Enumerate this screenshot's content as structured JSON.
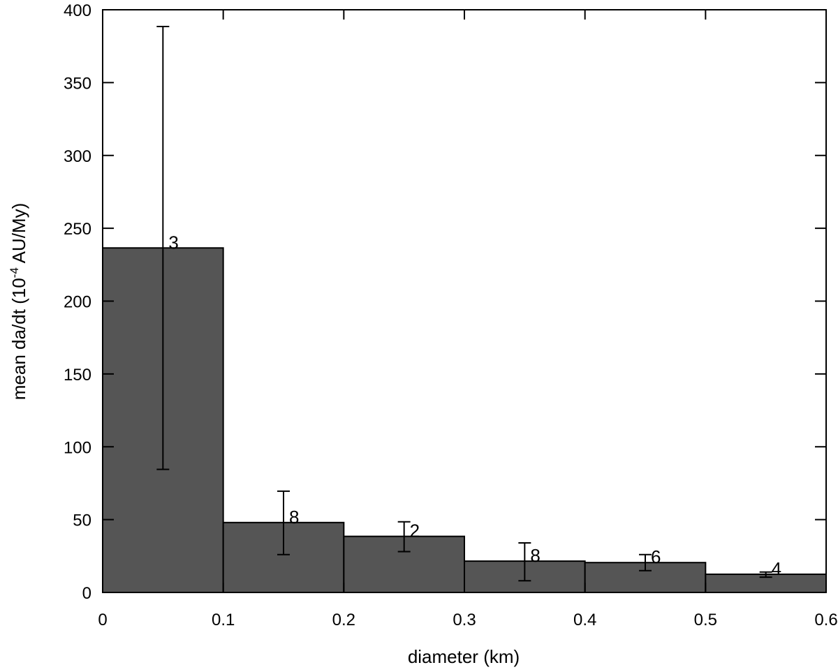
{
  "chart_data": {
    "type": "bar",
    "title": "",
    "xlabel": "diameter (km)",
    "ylabel": "mean da/dt (10",
    "ylabel_superscript": "-4",
    "ylabel_suffix": " AU/My)",
    "xlim": [
      0,
      0.6
    ],
    "ylim": [
      0,
      400
    ],
    "xticks": [
      "0",
      "0.1",
      "0.2",
      "0.3",
      "0.4",
      "0.5",
      "0.6"
    ],
    "yticks": [
      "0",
      "50",
      "100",
      "150",
      "200",
      "250",
      "300",
      "350",
      "400"
    ],
    "grid": false,
    "legend": "none",
    "bar_color": "#555555",
    "bins": [
      {
        "x0": 0.0,
        "x1": 0.1,
        "value": 236.5,
        "err_low": 84.5,
        "err_high": 388.5,
        "count": "3"
      },
      {
        "x0": 0.1,
        "x1": 0.2,
        "value": 48,
        "err_low": 26,
        "err_high": 69.5,
        "count": "8"
      },
      {
        "x0": 0.2,
        "x1": 0.3,
        "value": 38.5,
        "err_low": 28,
        "err_high": 48.5,
        "count": "2"
      },
      {
        "x0": 0.3,
        "x1": 0.4,
        "value": 21.5,
        "err_low": 8,
        "err_high": 34,
        "count": "8"
      },
      {
        "x0": 0.4,
        "x1": 0.5,
        "value": 20.5,
        "err_low": 15,
        "err_high": 26,
        "count": "6"
      },
      {
        "x0": 0.5,
        "x1": 0.6,
        "value": 12.5,
        "err_low": 10.5,
        "err_high": 14,
        "count": "4"
      }
    ]
  }
}
